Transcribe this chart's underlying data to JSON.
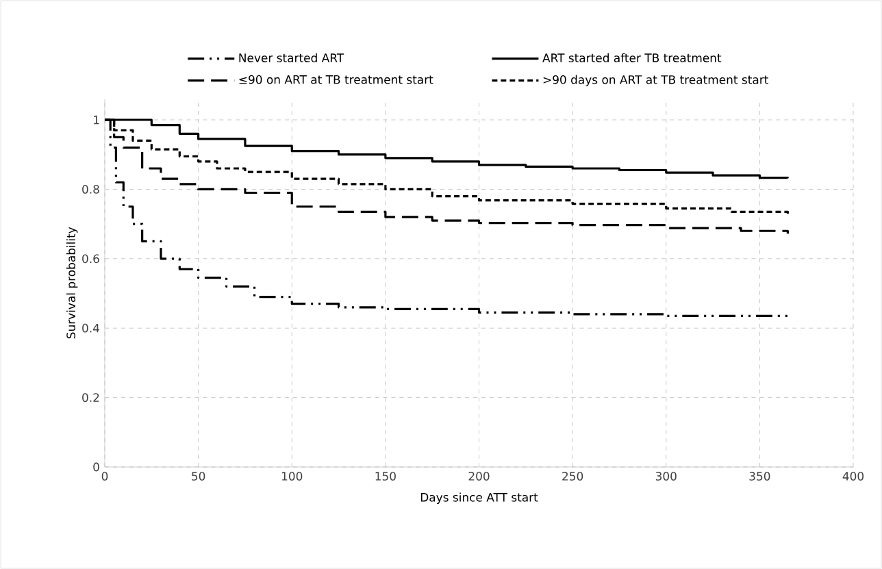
{
  "chart_data": {
    "type": "step",
    "xlabel": "Days since ATT start",
    "ylabel": "Survival probability",
    "xlim": [
      0,
      400
    ],
    "xticks": [
      0,
      50,
      100,
      150,
      200,
      250,
      300,
      350,
      400
    ],
    "ylim": [
      0,
      1.06
    ],
    "yticks": [
      0,
      0.2,
      0.4,
      0.6,
      0.8,
      1
    ],
    "grid": true,
    "legend": "top",
    "series": [
      {
        "name": "Never started ART",
        "color": "#000000",
        "line_style": "dashdotdotted",
        "x": [
          0,
          3,
          6,
          10,
          15,
          20,
          30,
          40,
          50,
          65,
          80,
          100,
          125,
          150,
          200,
          250,
          300,
          365
        ],
        "values": [
          1,
          0.92,
          0.82,
          0.75,
          0.7,
          0.65,
          0.6,
          0.57,
          0.545,
          0.52,
          0.49,
          0.47,
          0.46,
          0.455,
          0.445,
          0.44,
          0.435,
          0.43
        ]
      },
      {
        "name": "ART started after TB treatment",
        "color": "#000000",
        "line_style": "solid",
        "x": [
          0,
          15,
          25,
          40,
          50,
          75,
          100,
          125,
          150,
          175,
          200,
          225,
          250,
          275,
          300,
          325,
          350,
          365
        ],
        "values": [
          1,
          1,
          0.985,
          0.96,
          0.945,
          0.925,
          0.91,
          0.9,
          0.89,
          0.88,
          0.87,
          0.865,
          0.86,
          0.855,
          0.848,
          0.84,
          0.833,
          0.832
        ]
      },
      {
        "name": "≤90 on ART at TB treatment start",
        "color": "#000000",
        "line_style": "dashed",
        "x": [
          0,
          5,
          10,
          20,
          30,
          40,
          50,
          75,
          100,
          125,
          150,
          175,
          200,
          250,
          300,
          340,
          365
        ],
        "values": [
          1,
          0.95,
          0.92,
          0.86,
          0.83,
          0.815,
          0.8,
          0.79,
          0.75,
          0.735,
          0.72,
          0.71,
          0.703,
          0.697,
          0.688,
          0.68,
          0.672
        ]
      },
      {
        "name": ">90 days on ART at TB treatment start",
        "color": "#000000",
        "line_style": "dotted",
        "x": [
          0,
          5,
          15,
          25,
          40,
          50,
          60,
          75,
          100,
          125,
          150,
          175,
          200,
          250,
          300,
          335,
          365
        ],
        "values": [
          1,
          0.97,
          0.94,
          0.915,
          0.895,
          0.88,
          0.86,
          0.85,
          0.83,
          0.815,
          0.8,
          0.78,
          0.768,
          0.758,
          0.745,
          0.735,
          0.73
        ]
      }
    ]
  }
}
